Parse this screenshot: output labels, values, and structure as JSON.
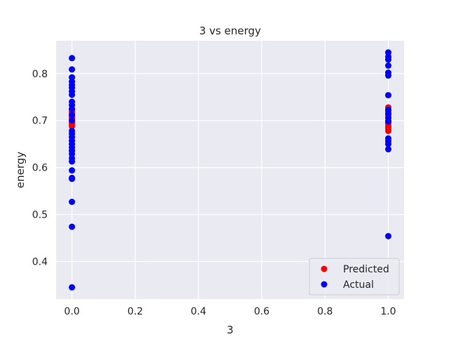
{
  "chart_data": {
    "type": "scatter",
    "title": "3 vs energy",
    "xlabel": "3",
    "ylabel": "energy",
    "xlim": [
      -0.05,
      1.05
    ],
    "ylim": [
      0.32,
      0.87
    ],
    "xticks": [
      0.0,
      0.2,
      0.4,
      0.6,
      0.8,
      1.0
    ],
    "xtick_labels": [
      "0.0",
      "0.2",
      "0.4",
      "0.6",
      "0.8",
      "1.0"
    ],
    "yticks": [
      0.4,
      0.5,
      0.6,
      0.7,
      0.8
    ],
    "ytick_labels": [
      "0.4",
      "0.5",
      "0.6",
      "0.7",
      "0.8"
    ],
    "grid": true,
    "legend_position": "bottom-right",
    "series": [
      {
        "name": "Predicted",
        "color": "#ff0000",
        "points": [
          [
            0,
            0.688
          ],
          [
            0,
            0.692
          ],
          [
            0,
            0.696
          ],
          [
            0,
            0.7
          ],
          [
            0,
            0.703
          ],
          [
            0,
            0.706
          ],
          [
            0,
            0.71
          ],
          [
            0,
            0.714
          ],
          [
            0,
            0.718
          ],
          [
            0,
            0.722
          ],
          [
            1,
            0.678
          ],
          [
            1,
            0.682
          ],
          [
            1,
            0.686
          ],
          [
            1,
            0.69
          ],
          [
            1,
            0.695
          ],
          [
            1,
            0.7
          ],
          [
            1,
            0.712
          ],
          [
            1,
            0.72
          ],
          [
            1,
            0.728
          ]
        ]
      },
      {
        "name": "Actual",
        "color": "#0000ff",
        "points": [
          [
            0,
            0.833
          ],
          [
            0,
            0.809
          ],
          [
            0,
            0.792
          ],
          [
            0,
            0.783
          ],
          [
            0,
            0.776
          ],
          [
            0,
            0.77
          ],
          [
            0,
            0.762
          ],
          [
            0,
            0.755
          ],
          [
            0,
            0.74
          ],
          [
            0,
            0.733
          ],
          [
            0,
            0.725
          ],
          [
            0,
            0.712
          ],
          [
            0,
            0.7
          ],
          [
            0,
            0.678
          ],
          [
            0,
            0.672
          ],
          [
            0,
            0.665
          ],
          [
            0,
            0.657
          ],
          [
            0,
            0.65
          ],
          [
            0,
            0.643
          ],
          [
            0,
            0.636
          ],
          [
            0,
            0.629
          ],
          [
            0,
            0.62
          ],
          [
            0,
            0.613
          ],
          [
            0,
            0.594
          ],
          [
            0,
            0.578
          ],
          [
            0,
            0.576
          ],
          [
            0,
            0.527
          ],
          [
            0,
            0.474
          ],
          [
            0,
            0.345
          ],
          [
            1,
            0.845
          ],
          [
            1,
            0.836
          ],
          [
            1,
            0.83
          ],
          [
            1,
            0.817
          ],
          [
            1,
            0.802
          ],
          [
            1,
            0.796
          ],
          [
            1,
            0.754
          ],
          [
            1,
            0.723
          ],
          [
            1,
            0.715
          ],
          [
            1,
            0.706
          ],
          [
            1,
            0.698
          ],
          [
            1,
            0.662
          ],
          [
            1,
            0.656
          ],
          [
            1,
            0.65
          ],
          [
            1,
            0.639
          ],
          [
            1,
            0.454
          ]
        ]
      }
    ]
  }
}
